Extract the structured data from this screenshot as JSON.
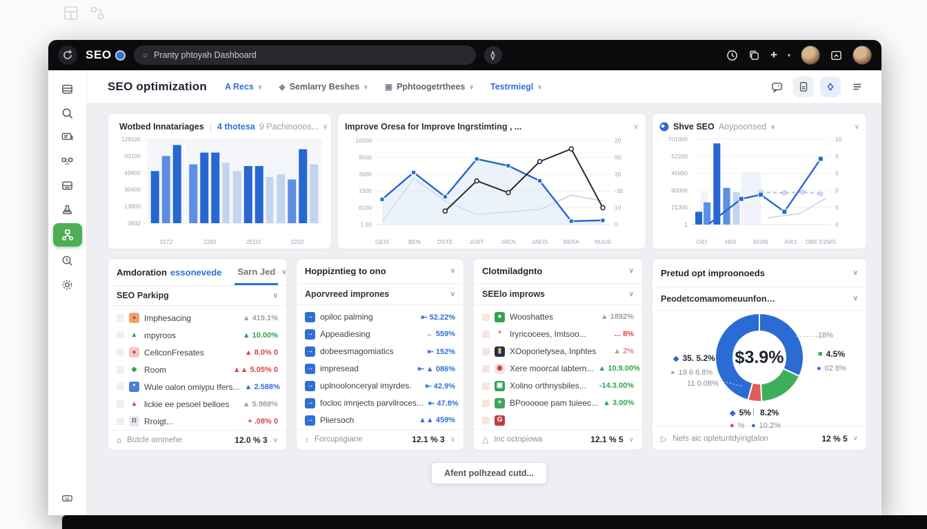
{
  "topbar": {
    "brand": "SEO",
    "search_placeholder": "Pranty phtoyah Dashboard"
  },
  "header": {
    "title": "SEO optimization",
    "nav": [
      {
        "label": "A Recs",
        "accent": true,
        "icon": ""
      },
      {
        "label": "Semlarry Beshes",
        "accent": false,
        "icon": "◈"
      },
      {
        "label": "Pphtoogetrthees",
        "accent": false,
        "icon": "▣"
      },
      {
        "label": "Testrmiegl",
        "accent": true,
        "icon": ""
      }
    ]
  },
  "charts_row": [
    {
      "title": "Wotbed Innatariages",
      "meta_accent": "4 thotesa",
      "meta": "9 Pachinooos..."
    },
    {
      "title": "Improve Oresa for Improve Ingrstimting , ..."
    },
    {
      "title_bold": "Shve SEO",
      "title_gray": "Aoypoonsed"
    }
  ],
  "chart_data": [
    {
      "type": "bar",
      "title": "Wotbed Innatariages",
      "y_ticks": [
        "129100",
        "03100",
        "49800",
        "35600",
        "13800",
        "0602"
      ],
      "categories": [
        "2272",
        "2292",
        "2ED2",
        "2202"
      ],
      "palette": {
        "d": "#2767d1",
        "m": "#5e8ee2",
        "l": "#c3d4f0"
      },
      "groups": [
        [
          {
            "v": 62,
            "c": "d"
          },
          {
            "v": 80,
            "c": "m"
          },
          {
            "v": 93,
            "c": "d"
          }
        ],
        [
          {
            "v": 70,
            "c": "m"
          },
          {
            "v": 84,
            "c": "d"
          },
          {
            "v": 84,
            "c": "d"
          },
          {
            "v": 72,
            "c": "l"
          }
        ],
        [
          {
            "v": 62,
            "c": "l"
          },
          {
            "v": 68,
            "c": "d"
          },
          {
            "v": 68,
            "c": "d"
          },
          {
            "v": 55,
            "c": "l"
          }
        ],
        [
          {
            "v": 58,
            "c": "l"
          },
          {
            "v": 52,
            "c": "m"
          },
          {
            "v": 88,
            "c": "d"
          },
          {
            "v": 70,
            "c": "l"
          }
        ]
      ]
    },
    {
      "type": "line",
      "title": "Improve Oresa for Improve Ingrstimting",
      "y_ticks": [
        "10000",
        "9500",
        "2600",
        "1500",
        "6100",
        "1 00"
      ],
      "y_ticks_right": [
        "20",
        "00",
        "20",
        "-30",
        "10",
        "0"
      ],
      "x": [
        "GEIS",
        ".BEN",
        "DSTE",
        "JOIIT",
        "JAEN",
        "JAEIS",
        "BERA",
        "NUUS"
      ],
      "series": [
        {
          "name": "gray",
          "color": "#c6ccd6",
          "width": 1.5,
          "values": [
            3,
            55,
            28,
            12,
            15,
            18,
            35,
            28
          ]
        },
        {
          "name": "blue",
          "color": "#2767d1",
          "width": 2.5,
          "marker": "square",
          "area": true,
          "values": [
            30,
            62,
            33,
            78,
            70,
            52,
            4,
            5
          ]
        },
        {
          "name": "black",
          "color": "#25282c",
          "width": 2,
          "marker": "circle",
          "values": [
            null,
            null,
            16,
            52,
            38,
            75,
            90,
            20
          ]
        }
      ]
    },
    {
      "type": "combo",
      "title": "Shve SEO Aoypoonsed",
      "y_ticks": [
        "701000",
        "52200",
        "45890",
        "80000",
        "21300",
        "1"
      ],
      "y_ticks_right": [
        "10",
        "0",
        "0",
        "0",
        "0",
        "0"
      ],
      "x": [
        ".OID",
        "NIIX",
        "BOIN",
        "AIX1",
        "DBE E2WS"
      ],
      "palette": {
        "d": "#2767d1",
        "m": "#5e8ee2",
        "l": "#c3d4f0"
      },
      "bg_bands": [
        {
          "p": 0.07,
          "w": 0.05,
          "v": 38
        },
        {
          "p": 0.24,
          "w": 0.05,
          "v": 42
        },
        {
          "p": 0.36,
          "w": 0.14,
          "v": 62
        }
      ],
      "bars": [
        {
          "p": 0.03,
          "v": 15,
          "c": "d"
        },
        {
          "p": 0.09,
          "v": 26,
          "c": "m"
        },
        {
          "p": 0.16,
          "v": 95,
          "c": "d"
        },
        {
          "p": 0.23,
          "v": 43,
          "c": "m"
        },
        {
          "p": 0.3,
          "v": 38,
          "c": "l"
        }
      ],
      "line": {
        "color": "#2767d1",
        "points": [
          [
            0.13,
            1
          ],
          [
            0.36,
            30
          ],
          [
            0.5,
            35
          ],
          [
            0.67,
            15
          ],
          [
            0.93,
            77
          ]
        ]
      },
      "dashed": {
        "color": "#a9c4ec",
        "points": [
          [
            0.5,
            38
          ],
          [
            0.67,
            37
          ],
          [
            0.8,
            38
          ],
          [
            0.93,
            36
          ]
        ]
      },
      "gray": {
        "color": "#ccd2db",
        "points": [
          [
            0.55,
            8
          ],
          [
            0.78,
            13
          ],
          [
            0.97,
            31
          ]
        ]
      }
    },
    {
      "type": "donut",
      "center_label": "$3.9%",
      "slices": [
        {
          "color": "#2b6bd4",
          "from": 0,
          "to": 115
        },
        {
          "color": "#3fae5a",
          "from": 115,
          "to": 177
        },
        {
          "color": "#e05b5b",
          "from": 177,
          "to": 195
        },
        {
          "color": "#2b6bd4",
          "from": 195,
          "to": 360
        }
      ]
    }
  ],
  "panels": [
    {
      "title": "Amdoration",
      "title_accent": "essonevede",
      "tab": "Sarn Jed",
      "subheader": "SEO Parkipg",
      "checkbox_color": "#eef0f3",
      "rows": [
        {
          "icon": {
            "bg": "#eda56d",
            "glyph": "●",
            "fg": "#b85c22"
          },
          "label": "Imphesacing",
          "value": "▲ 419.1%",
          "vc": "#9aa1ab"
        },
        {
          "icon": {
            "bg": "",
            "glyph": "▲",
            "fg": "#2ea44f"
          },
          "label": "mpyroos",
          "value": "▲ 10.00%",
          "vc": "#2ea44f"
        },
        {
          "icon": {
            "bg": "#f2c7c7",
            "glyph": "●",
            "fg": "#cf4444"
          },
          "label": "CellconFresates",
          "value": "▲ 8.0% 0",
          "vc": "#d64545"
        },
        {
          "icon": {
            "bg": "",
            "glyph": "◆",
            "fg": "#2ea44f"
          },
          "label": "Room",
          "value": "▲▲ 5.05% 0",
          "vc": "#d64545"
        },
        {
          "icon": {
            "bg": "#4a80d8",
            "glyph": "*",
            "fg": "#ffffff"
          },
          "label": "Wule oalon omiypu Ifers...",
          "value": "▲ 2.588%",
          "vc": "#2f6fd6"
        },
        {
          "icon": {
            "bg": "",
            "glyph": "▲",
            "fg": "#d64545"
          },
          "label": "lickie ee pesoel belloes",
          "value": "▲ 5.988%",
          "vc": "#9aa1ab"
        },
        {
          "icon": {
            "bg": "#e7e9ed",
            "glyph": "R",
            "fg": "#6b7280"
          },
          "label": "Rroigt...",
          "value": "+ .08% 0",
          "vc": "#d64545"
        }
      ],
      "footer": {
        "icon": "⌂",
        "icon_color": "#2b6bd4",
        "label": "Butcle ommehe",
        "value": "12.0 % 3"
      }
    },
    {
      "title": "Hoppizntieg to ono",
      "title_accent": "",
      "tab": "",
      "subheader": "Aporvreed imprones",
      "checkbox_color": "",
      "rows": [
        {
          "icon": {
            "bg": "#2f6fd6",
            "glyph": "→",
            "fg": "#ffffff"
          },
          "label": "opiloc palming",
          "value": "⇤ 52.22%",
          "vc": "#2f6fd6"
        },
        {
          "icon": {
            "bg": "#2f6fd6",
            "glyph": "→",
            "fg": "#ffffff"
          },
          "label": "Appeadiesing",
          "value": "← 559%",
          "vc": "#2f6fd6"
        },
        {
          "icon": {
            "bg": "#2f6fd6",
            "glyph": "→",
            "fg": "#ffffff"
          },
          "label": "dobeesmagomiatics",
          "value": "⇤ 152%",
          "vc": "#2f6fd6"
        },
        {
          "icon": {
            "bg": "#2f6fd6",
            "glyph": "→",
            "fg": "#ffffff"
          },
          "label": "impresead",
          "value": "⇤ ▲ 086%",
          "vc": "#2f6fd6"
        },
        {
          "icon": {
            "bg": "#2f6fd6",
            "glyph": "→",
            "fg": "#ffffff"
          },
          "label": "uplnoolonceryal imyrdes.",
          "value": "⇤ 42.9%",
          "vc": "#2f6fd6"
        },
        {
          "icon": {
            "bg": "#2f6fd6",
            "glyph": "→",
            "fg": "#ffffff"
          },
          "label": "focloc imnjects parvilroces...",
          "value": "⇤ 47.8%",
          "vc": "#2f6fd6"
        },
        {
          "icon": {
            "bg": "#2f6fd6",
            "glyph": "→",
            "fg": "#ffffff"
          },
          "label": "Pliersoch",
          "value": "▲▲ 459%",
          "vc": "#2f6fd6"
        }
      ],
      "footer": {
        "icon": "↕",
        "icon_color": "#8b939d",
        "label": "Forcupsgiane",
        "value": "12.1 % 3"
      }
    },
    {
      "title": "Clotmiladgnto",
      "title_accent": "",
      "tab": "",
      "subheader": "SEElo improws",
      "checkbox_color": "#f7e4e4",
      "rows": [
        {
          "icon": {
            "bg": "#2ea44f",
            "glyph": "●",
            "fg": "#ffffff"
          },
          "label": "Wooshattes",
          "value": "▲ 1892%",
          "vc": "#9aa1ab"
        },
        {
          "icon": {
            "bg": "",
            "glyph": "*",
            "fg": "#cf3d3d"
          },
          "label": "Iryricocees, Imtsoo...",
          "value": "... 8%",
          "vc": "#d64545"
        },
        {
          "icon": {
            "bg": "#22304f",
            "glyph": "▮",
            "fg": "#e8c04c"
          },
          "label": "XOoporietysea, Inphtes",
          "value": "▲ 2%",
          "vc": "#e08a8a"
        },
        {
          "icon": {
            "bg": "#f3e6e2",
            "glyph": "◉",
            "fg": "#c23c3c"
          },
          "label": "Xere moorcal labtern...",
          "value": "▲ 10.9.00%",
          "vc": "#2ea44f"
        },
        {
          "icon": {
            "bg": "#2ea44f",
            "glyph": "▣",
            "fg": "#ffffff"
          },
          "label": "Xolino orthnysbiles...",
          "value": "-14.3.00%",
          "vc": "#2ea44f"
        },
        {
          "icon": {
            "bg": "#3da75a",
            "glyph": "+",
            "fg": "#ffffff"
          },
          "label": "BPoooooe pam tuieec...",
          "value": "▲ 3.00%",
          "vc": "#2ea44f"
        },
        {
          "icon": {
            "bg": "#c23c3c",
            "glyph": "G",
            "fg": "#ffffff"
          },
          "label": "",
          "value": "",
          "vc": ""
        }
      ],
      "footer": {
        "icon": "△",
        "icon_color": "#8b939d",
        "label": "Inc octnpiowa",
        "value": "12.1 % 5"
      }
    },
    {
      "title": "Pretud opt improonoeds",
      "title_accent": "",
      "tab": "",
      "subheader": "Peodetcomamomeuunfon…",
      "donut_callouts": [
        {
          "glyph": "◆",
          "gc": "#2b6bd4",
          "text": "35. 5.2%",
          "bold": true
        },
        {
          "glyph": "●",
          "gc": "#a7adb6",
          "text": "19.6 8.8%",
          "bold": false
        },
        {
          "glyph": "",
          "gc": "",
          "text": "11 0.08%",
          "bold": false
        },
        {
          "glyph": "",
          "gc": "",
          "text": "18%",
          "bold": false
        },
        {
          "glyph": "■",
          "gc": "#3fae5a",
          "text": "4.5%",
          "bold": true
        },
        {
          "glyph": "●",
          "gc": "#2b6bd4",
          "text": "02 8%",
          "bold": false
        },
        {
          "glyph": "◆",
          "gc": "#2b6bd4",
          "text": "5%",
          "bold": true
        },
        {
          "glyph": "",
          "gc": "",
          "text": "|",
          "bold": false
        },
        {
          "glyph": "",
          "gc": "",
          "text": "8.2%",
          "bold": true
        },
        {
          "glyph": "●",
          "gc": "#d64545",
          "text": "%",
          "bold": false
        },
        {
          "glyph": "●",
          "gc": "#2b6bd4",
          "text": "10.2%",
          "bold": false
        }
      ],
      "footer": {
        "icon": "▷",
        "icon_color": "#8b939d",
        "label": "Nets aic optetuntdyirigtalon",
        "value": "12 % 5"
      }
    }
  ],
  "bottom_button": "Afent polhzead cutd..."
}
